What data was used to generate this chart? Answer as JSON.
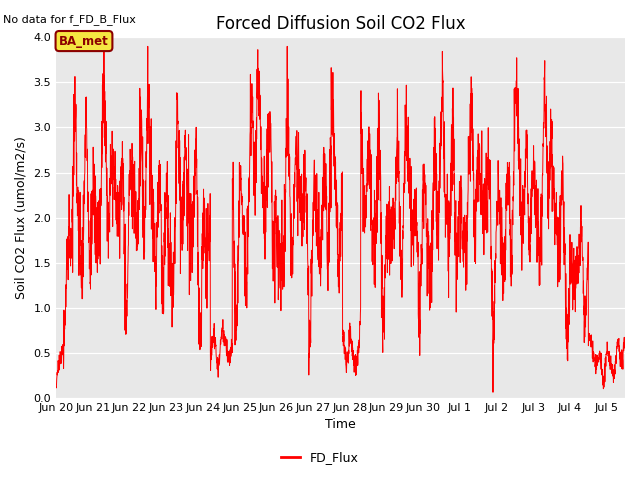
{
  "title": "Forced Diffusion Soil CO2 Flux",
  "xlabel": "Time",
  "ylabel": "Soil CO2 Flux (umol/m2/s)",
  "no_data_label": "No data for f_FD_B_Flux",
  "legend_label": "FD_Flux",
  "ba_met_label": "BA_met",
  "line_color": "red",
  "background_color": "#e8e8e8",
  "plot_bg_color": "#e8e8e8",
  "ylim": [
    0.0,
    4.0
  ],
  "yticks": [
    0.0,
    0.5,
    1.0,
    1.5,
    2.0,
    2.5,
    3.0,
    3.5,
    4.0
  ],
  "tick_labels": [
    "Jun 20",
    "Jun 21",
    "Jun 22",
    "Jun 23",
    "Jun 24",
    "Jun 25",
    "Jun 26",
    "Jun 27",
    "Jun 28",
    "Jun 29",
    "Jun 30",
    "Jul 1",
    "Jul 2",
    "Jul 3",
    "Jul 4",
    "Jul 5"
  ],
  "title_fontsize": 12,
  "label_fontsize": 9,
  "tick_fontsize": 8
}
